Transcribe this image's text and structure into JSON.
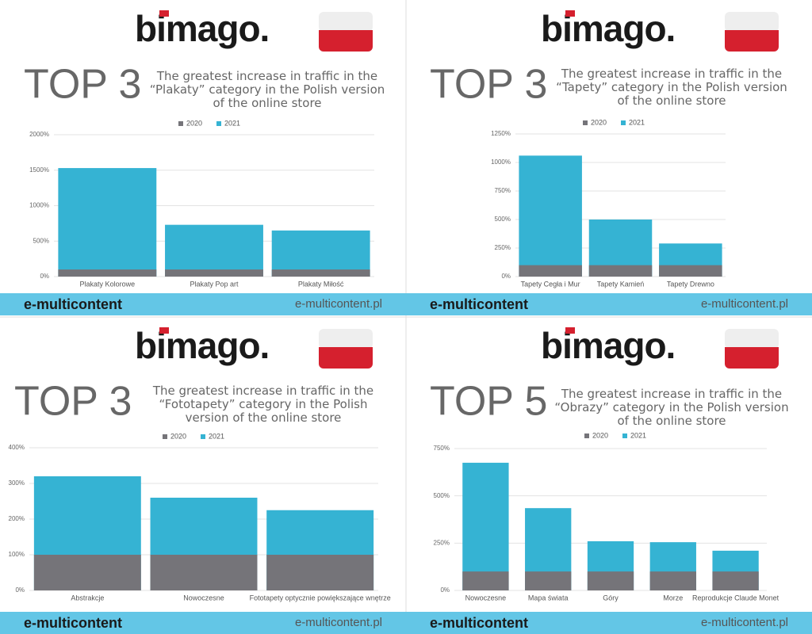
{
  "chart_data": [
    {
      "type": "bar",
      "logo": "bimago.",
      "heading": "TOP 3",
      "title": "The greatest increase in traffic in the “Plakaty” category in the Polish version of the online store",
      "categories": [
        "Plakaty Kolorowe",
        "Plakaty Pop art",
        "Plakaty Miłość"
      ],
      "series": [
        {
          "name": "2020",
          "color": "#757479",
          "values": [
            100,
            100,
            100
          ]
        },
        {
          "name": "2021",
          "color": "#35b3d3",
          "values": [
            1530,
            730,
            650
          ]
        }
      ],
      "ylim": [
        0,
        2000
      ],
      "yticks": [
        {
          "value": 0,
          "label": "0%"
        },
        {
          "value": 500,
          "label": "500%"
        },
        {
          "value": 1000,
          "label": "1000%"
        },
        {
          "value": 1500,
          "label": "1500%"
        },
        {
          "value": 2000,
          "label": "2000%"
        }
      ],
      "grid": true,
      "footer_brand": "e-multicontent",
      "footer_url": "e-multicontent.pl"
    },
    {
      "type": "bar",
      "logo": "bimago.",
      "heading": "TOP 3",
      "title": "The greatest increase in traffic in the “Tapety” category in the Polish version of the online store",
      "categories": [
        "Tapety Cegła i Mur",
        "Tapety Kamień",
        "Tapety Drewno"
      ],
      "series": [
        {
          "name": "2020",
          "color": "#757479",
          "values": [
            100,
            100,
            100
          ]
        },
        {
          "name": "2021",
          "color": "#35b3d3",
          "values": [
            1060,
            500,
            290
          ]
        }
      ],
      "ylim": [
        0,
        1250
      ],
      "yticks": [
        {
          "value": 0,
          "label": "0%"
        },
        {
          "value": 250,
          "label": "250%"
        },
        {
          "value": 500,
          "label": "500%"
        },
        {
          "value": 750,
          "label": "750%"
        },
        {
          "value": 1000,
          "label": "1000%"
        },
        {
          "value": 1250,
          "label": "1250%"
        }
      ],
      "grid": true,
      "footer_brand": "e-multicontent",
      "footer_url": "e-multicontent.pl"
    },
    {
      "type": "bar",
      "logo": "bimago.",
      "heading": "TOP 3",
      "title": "The greatest increase in traffic in the “Fototapety” category in the Polish version of the online store",
      "categories": [
        "Abstrakcje",
        "Nowoczesne",
        "Fototapety optycznie powiększające wnętrze"
      ],
      "series": [
        {
          "name": "2020",
          "color": "#757479",
          "values": [
            100,
            100,
            100
          ]
        },
        {
          "name": "2021",
          "color": "#35b3d3",
          "values": [
            320,
            260,
            225
          ]
        }
      ],
      "ylim": [
        0,
        400
      ],
      "yticks": [
        {
          "value": 0,
          "label": "0%"
        },
        {
          "value": 100,
          "label": "100%"
        },
        {
          "value": 200,
          "label": "200%"
        },
        {
          "value": 300,
          "label": "300%"
        },
        {
          "value": 400,
          "label": "400%"
        }
      ],
      "grid": true,
      "footer_brand": "e-multicontent",
      "footer_url": "e-multicontent.pl"
    },
    {
      "type": "bar",
      "logo": "bimago.",
      "heading": "TOP 5",
      "title": "The greatest increase in traffic in the “Obrazy” category in the Polish version of the online store",
      "categories": [
        "Nowoczesne",
        "Mapa świata",
        "Góry",
        "Morze",
        "Reprodukcje Claude Monet"
      ],
      "series": [
        {
          "name": "2020",
          "color": "#757479",
          "values": [
            100,
            100,
            100,
            100,
            100
          ]
        },
        {
          "name": "2021",
          "color": "#35b3d3",
          "values": [
            675,
            435,
            260,
            255,
            210
          ]
        }
      ],
      "ylim": [
        0,
        750
      ],
      "yticks": [
        {
          "value": 0,
          "label": "0%"
        },
        {
          "value": 250,
          "label": "250%"
        },
        {
          "value": 500,
          "label": "500%"
        },
        {
          "value": 750,
          "label": "750%"
        }
      ],
      "grid": true,
      "footer_brand": "e-multicontent",
      "footer_url": "e-multicontent.pl"
    }
  ]
}
